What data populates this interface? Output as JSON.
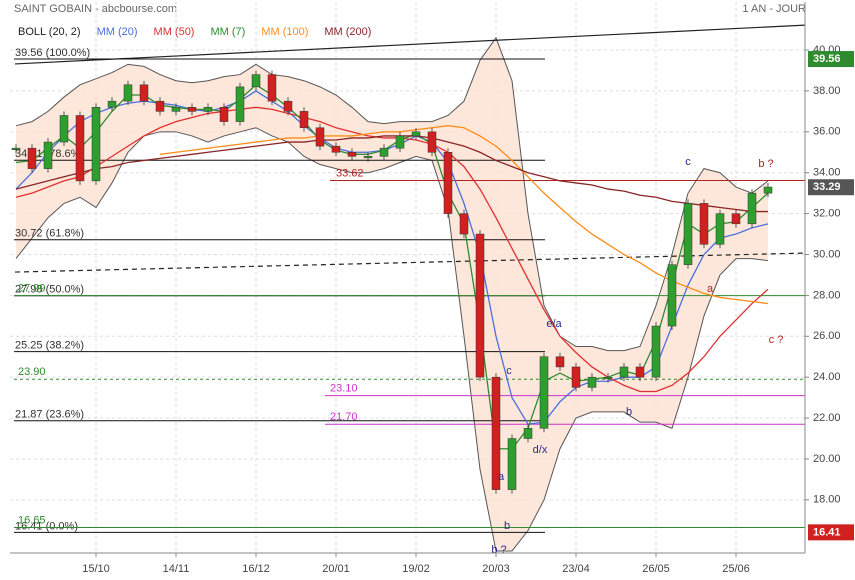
{
  "chart_data": {
    "type": "candlestick",
    "title": "SAINT GOBAIN - abcbourse.com",
    "period": "1 AN - JOUR",
    "grid": true,
    "categories": [
      null,
      null,
      null,
      null,
      null,
      "15/10",
      null,
      null,
      null,
      null,
      "14/11",
      null,
      null,
      null,
      null,
      "16/12",
      null,
      null,
      null,
      null,
      "20/01",
      null,
      null,
      null,
      null,
      "19/02",
      null,
      null,
      null,
      null,
      "20/03",
      null,
      null,
      null,
      null,
      "23/04",
      null,
      null,
      null,
      null,
      "26/05",
      null,
      null,
      null,
      null,
      "25/06",
      null,
      null
    ],
    "ylim": [
      15.4,
      42.35
    ],
    "yticks": [
      {
        "value": 18,
        "label": "18.00"
      },
      {
        "value": 20,
        "label": "20.00"
      },
      {
        "value": 22,
        "label": "22.00"
      },
      {
        "value": 24,
        "label": "24.00"
      },
      {
        "value": 26,
        "label": "26.00"
      },
      {
        "value": 28,
        "label": "28.00"
      },
      {
        "value": 30,
        "label": "30.00"
      },
      {
        "value": 32,
        "label": "32.00"
      },
      {
        "value": 34,
        "label": "34.00"
      },
      {
        "value": 36,
        "label": "36.00"
      },
      {
        "value": 38,
        "label": "38.00"
      },
      {
        "value": 40,
        "label": "40.00"
      }
    ],
    "price": {
      "up_color": "#2e9e2e",
      "down_color": "#d02020",
      "values": [
        35.2,
        34.2,
        35.5,
        36.8,
        33.6,
        37.2,
        37.5,
        38.3,
        37.5,
        37.0,
        37.2,
        37.0,
        37.2,
        36.5,
        38.2,
        38.8,
        37.5,
        37.0,
        36.2,
        35.3,
        35.0,
        34.8,
        34.8,
        35.2,
        35.8,
        36.0,
        35.0,
        32.0,
        31.0,
        24.0,
        18.5,
        21.0,
        21.5,
        25.0,
        24.5,
        23.5,
        24.0,
        24.0,
        24.5,
        24.0,
        26.5,
        29.5,
        32.5,
        30.5,
        32.0,
        31.5,
        33.0,
        33.3
      ]
    },
    "bollinger": {
      "name": "BOLL (20, 2)",
      "color": "#555555",
      "fill": "#fde3d3",
      "upper": [
        36.3,
        36.5,
        37.0,
        37.7,
        38.3,
        38.6,
        38.9,
        39.3,
        39.2,
        38.8,
        38.5,
        38.4,
        38.5,
        38.7,
        38.8,
        39.3,
        38.8,
        38.7,
        38.5,
        38.2,
        37.8,
        37.2,
        36.5,
        36.4,
        36.5,
        36.5,
        36.5,
        36.8,
        37.5,
        39.5,
        40.6,
        38.5,
        32.0,
        27.5,
        26.0,
        25.5,
        25.5,
        25.3,
        25.3,
        25.5,
        27.5,
        30.0,
        33.0,
        34.2,
        34.0,
        33.3,
        33.0,
        33.6
      ],
      "lower": [
        29.8,
        30.8,
        31.8,
        32.5,
        32.8,
        32.3,
        33.5,
        35.0,
        35.8,
        36.0,
        36.0,
        35.8,
        35.5,
        35.8,
        36.0,
        36.2,
        35.8,
        35.5,
        34.8,
        34.4,
        34.2,
        34.0,
        34.0,
        34.2,
        34.5,
        34.8,
        34.6,
        32.2,
        26.0,
        19.5,
        15.5,
        15.5,
        16.5,
        18.0,
        20.5,
        22.0,
        22.3,
        22.3,
        22.3,
        21.8,
        21.8,
        21.5,
        24.0,
        27.0,
        29.0,
        29.8,
        29.8,
        29.7
      ]
    },
    "series": [
      {
        "name": "MM (20)",
        "color": "#4a6fe0",
        "values": [
          33.2,
          34.0,
          35.0,
          35.8,
          36.5,
          36.9,
          37.2,
          37.4,
          37.5,
          37.4,
          37.3,
          37.1,
          37.0,
          37.2,
          37.5,
          38.0,
          37.5,
          37.0,
          36.3,
          35.7,
          35.2,
          35.0,
          35.0,
          35.1,
          35.4,
          35.8,
          35.5,
          34.5,
          32.5,
          30.0,
          26.0,
          23.0,
          21.7,
          21.8,
          22.8,
          23.5,
          23.8,
          23.8,
          24.0,
          24.0,
          24.5,
          26.5,
          28.5,
          30.0,
          30.8,
          31.0,
          31.3,
          31.5
        ]
      },
      {
        "name": "MM (50)",
        "color": "#e03030",
        "values": [
          32.8,
          33.0,
          33.3,
          33.6,
          33.8,
          34.3,
          34.8,
          35.3,
          35.8,
          36.2,
          36.5,
          36.7,
          36.9,
          37.0,
          37.1,
          37.2,
          37.1,
          36.9,
          36.7,
          36.5,
          36.2,
          36.0,
          35.8,
          35.7,
          35.7,
          35.6,
          35.4,
          35.0,
          34.3,
          33.2,
          31.8,
          30.3,
          28.8,
          27.3,
          26.0,
          25.2,
          24.5,
          24.0,
          23.6,
          23.3,
          23.3,
          23.6,
          24.2,
          25.0,
          26.0,
          26.8,
          27.6,
          28.3
        ]
      },
      {
        "name": "MM (7)",
        "color": "#2e8b2e",
        "values": [
          34.5,
          34.6,
          35.2,
          35.8,
          35.2,
          36.0,
          37.0,
          37.8,
          37.8,
          37.3,
          37.2,
          37.1,
          37.1,
          37.0,
          37.6,
          38.3,
          37.8,
          37.2,
          36.5,
          35.6,
          35.1,
          34.9,
          34.9,
          35.1,
          35.6,
          35.9,
          35.4,
          33.0,
          31.5,
          26.5,
          20.5,
          20.5,
          21.5,
          23.8,
          24.2,
          23.8,
          23.9,
          24.0,
          24.3,
          24.1,
          25.8,
          28.5,
          31.5,
          31.0,
          31.5,
          31.6,
          32.3,
          33.0
        ]
      },
      {
        "name": "MM (100)",
        "color": "#ff8c1a",
        "values": [
          null,
          null,
          null,
          null,
          null,
          null,
          null,
          null,
          null,
          34.9,
          35.0,
          35.1,
          35.2,
          35.3,
          35.4,
          35.5,
          35.6,
          35.7,
          35.7,
          35.8,
          35.8,
          35.8,
          35.9,
          36.0,
          36.0,
          36.1,
          36.2,
          36.3,
          36.2,
          35.8,
          35.3,
          34.6,
          33.8,
          33.0,
          32.3,
          31.6,
          31.0,
          30.5,
          30.0,
          29.6,
          29.1,
          28.7,
          28.4,
          28.1,
          27.9,
          27.8,
          27.7,
          27.6
        ]
      },
      {
        "name": "MM (200)",
        "color": "#8b2525",
        "values": [
          33.2,
          33.4,
          33.6,
          33.8,
          34.0,
          34.2,
          34.3,
          34.5,
          34.6,
          34.7,
          34.8,
          34.9,
          35.0,
          35.1,
          35.2,
          35.3,
          35.4,
          35.5,
          35.5,
          35.6,
          35.6,
          35.7,
          35.7,
          35.8,
          35.8,
          35.8,
          35.7,
          35.5,
          35.3,
          35.0,
          34.6,
          34.3,
          34.0,
          33.8,
          33.6,
          33.5,
          33.4,
          33.2,
          33.1,
          32.9,
          32.8,
          32.6,
          32.5,
          32.4,
          32.3,
          32.2,
          32.1,
          32.1
        ]
      }
    ],
    "fibonacci": [
      {
        "value": 39.56,
        "label": "39.56 (100.0%)"
      },
      {
        "value": 34.61,
        "label": "34.61 (78.6%)"
      },
      {
        "value": 30.72,
        "label": "30.72 (61.8%)"
      },
      {
        "value": 27.98,
        "label": "27.98 (50.0%)"
      },
      {
        "value": 25.25,
        "label": "25.25 (38.2%)"
      },
      {
        "value": 21.87,
        "label": "21.87 (23.6%)"
      },
      {
        "value": 16.41,
        "label": "16.41 (0.0%)"
      }
    ],
    "levels": [
      {
        "value": 33.62,
        "color": "#b22222",
        "dashed": false
      },
      {
        "value": 27.99,
        "color": "#2e8b2e",
        "dashed": false
      },
      {
        "value": 23.9,
        "label": "23.90",
        "color": "#2e8b2e",
        "dashed": true
      },
      {
        "value": 23.1,
        "label": "23.10",
        "color": "#cc33cc",
        "dashed": false
      },
      {
        "value": 21.7,
        "label": "21.70",
        "color": "#cc33cc",
        "dashed": false
      },
      {
        "value": 16.65,
        "color": "#2e8b2e",
        "dashed": false
      }
    ],
    "trendlines": [
      {
        "start": 39.32,
        "end": 41.22,
        "dashed": false
      },
      {
        "start": 29.14,
        "end": 30.07,
        "dashed": true
      }
    ],
    "badges": [
      {
        "value": 39.56,
        "color": "#2e8b2e"
      },
      {
        "value": 33.29,
        "color": "#555555"
      },
      {
        "value": 16.41,
        "color": "#d02020"
      }
    ],
    "annotations": [
      {
        "text": "c",
        "color": "#2a2a8a"
      },
      {
        "text": "b ?",
        "color": "#b22222"
      },
      {
        "text": "a",
        "color": "#b22222"
      },
      {
        "text": "c ?",
        "color": "#b22222"
      },
      {
        "text": "e/a",
        "color": "#2a2a8a"
      },
      {
        "text": "c",
        "color": "#2a2a8a"
      },
      {
        "text": "b",
        "color": "#2a2a8a"
      },
      {
        "text": "d/x",
        "color": "#2a2a8a"
      },
      {
        "text": "a",
        "color": "#2a2a8a"
      },
      {
        "text": "b",
        "color": "#2a2a8a"
      },
      {
        "text": "b ?",
        "color": "#2a2a8a"
      }
    ]
  }
}
